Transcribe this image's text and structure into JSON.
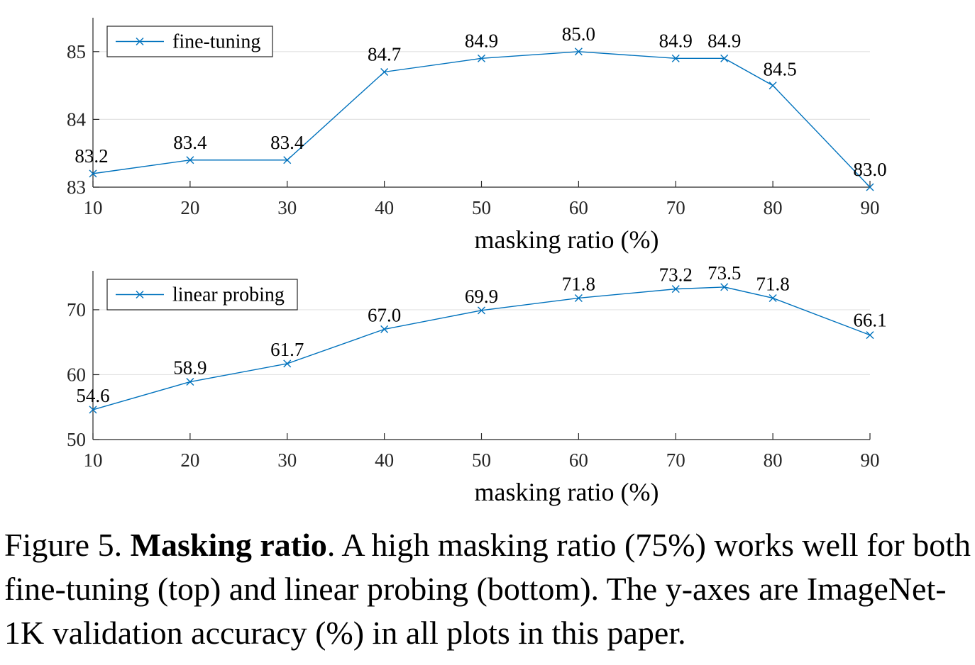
{
  "chart_data": [
    {
      "type": "line",
      "x": [
        10,
        20,
        30,
        40,
        50,
        60,
        70,
        75,
        80,
        90
      ],
      "series": [
        {
          "name": "fine-tuning",
          "values": [
            83.2,
            83.4,
            83.4,
            84.7,
            84.9,
            85.0,
            84.9,
            84.9,
            84.5,
            83.0
          ],
          "labels": [
            "83.2",
            "83.4",
            "83.4",
            "84.7",
            "84.9",
            "85.0",
            "84.9",
            "84.9",
            "84.5",
            "83.0"
          ],
          "color": "#0072BD",
          "marker": "x"
        }
      ],
      "xlabel": "masking ratio (%)",
      "ylabel": "",
      "xlim": [
        10,
        90
      ],
      "ylim": [
        83,
        85.5
      ],
      "xticks": [
        10,
        20,
        30,
        40,
        50,
        60,
        70,
        80,
        90
      ],
      "xtick_labels": [
        "10",
        "20",
        "30",
        "40",
        "50",
        "60",
        "70",
        "80",
        "90"
      ],
      "yticks": [
        83,
        84,
        85
      ],
      "ytick_labels": [
        "83",
        "84",
        "85"
      ],
      "grid": "horizontal",
      "legend": "top-left"
    },
    {
      "type": "line",
      "x": [
        10,
        20,
        30,
        40,
        50,
        60,
        70,
        75,
        80,
        90
      ],
      "series": [
        {
          "name": "linear probing",
          "values": [
            54.6,
            58.9,
            61.7,
            67.0,
            69.9,
            71.8,
            73.2,
            73.5,
            71.8,
            66.1
          ],
          "labels": [
            "54.6",
            "58.9",
            "61.7",
            "67.0",
            "69.9",
            "71.8",
            "73.2",
            "73.5",
            "71.8",
            "66.1"
          ],
          "color": "#0072BD",
          "marker": "x"
        }
      ],
      "xlabel": "masking ratio (%)",
      "ylabel": "",
      "xlim": [
        10,
        90
      ],
      "ylim": [
        50,
        76
      ],
      "xticks": [
        10,
        20,
        30,
        40,
        50,
        60,
        70,
        80,
        90
      ],
      "xtick_labels": [
        "10",
        "20",
        "30",
        "40",
        "50",
        "60",
        "70",
        "80",
        "90"
      ],
      "yticks": [
        50,
        60,
        70
      ],
      "ytick_labels": [
        "50",
        "60",
        "70"
      ],
      "grid": "horizontal",
      "legend": "top-left"
    }
  ],
  "caption": {
    "prefix": "Figure 5. ",
    "title": "Masking ratio",
    "text": ". A high masking ratio (75%) works well for both fine-tuning (top) and linear probing (bottom). The y-axes are ImageNet-1K validation accuracy (%) in all plots in this paper."
  }
}
